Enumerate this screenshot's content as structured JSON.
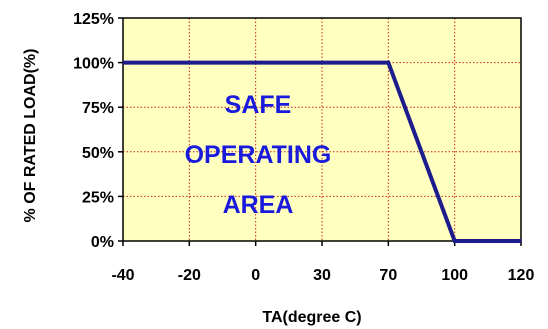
{
  "chart_data": {
    "type": "line",
    "categories": [
      "-40",
      "-20",
      "0",
      "30",
      "70",
      "100",
      "120"
    ],
    "series": [
      {
        "x": [
          "-40",
          "70",
          "100",
          "120"
        ],
        "y": [
          100,
          100,
          0,
          0
        ]
      }
    ],
    "ylim": [
      0,
      125
    ],
    "ytick_values": [
      0,
      25,
      50,
      75,
      100,
      125
    ],
    "ytick_labels": [
      "0%",
      "25%",
      "50%",
      "75%",
      "100%",
      "125%"
    ],
    "xlabel": "TA(degree C)",
    "ylabel": "% OF RATED LOAD(%)",
    "annotation": [
      "SAFE",
      "OPERATING",
      "AREA"
    ],
    "grid": true,
    "colors": {
      "plot_background": "#ffffc0",
      "grid": "#d02020",
      "line": "#1c1c8c",
      "annotation": "#1a1adc"
    }
  }
}
